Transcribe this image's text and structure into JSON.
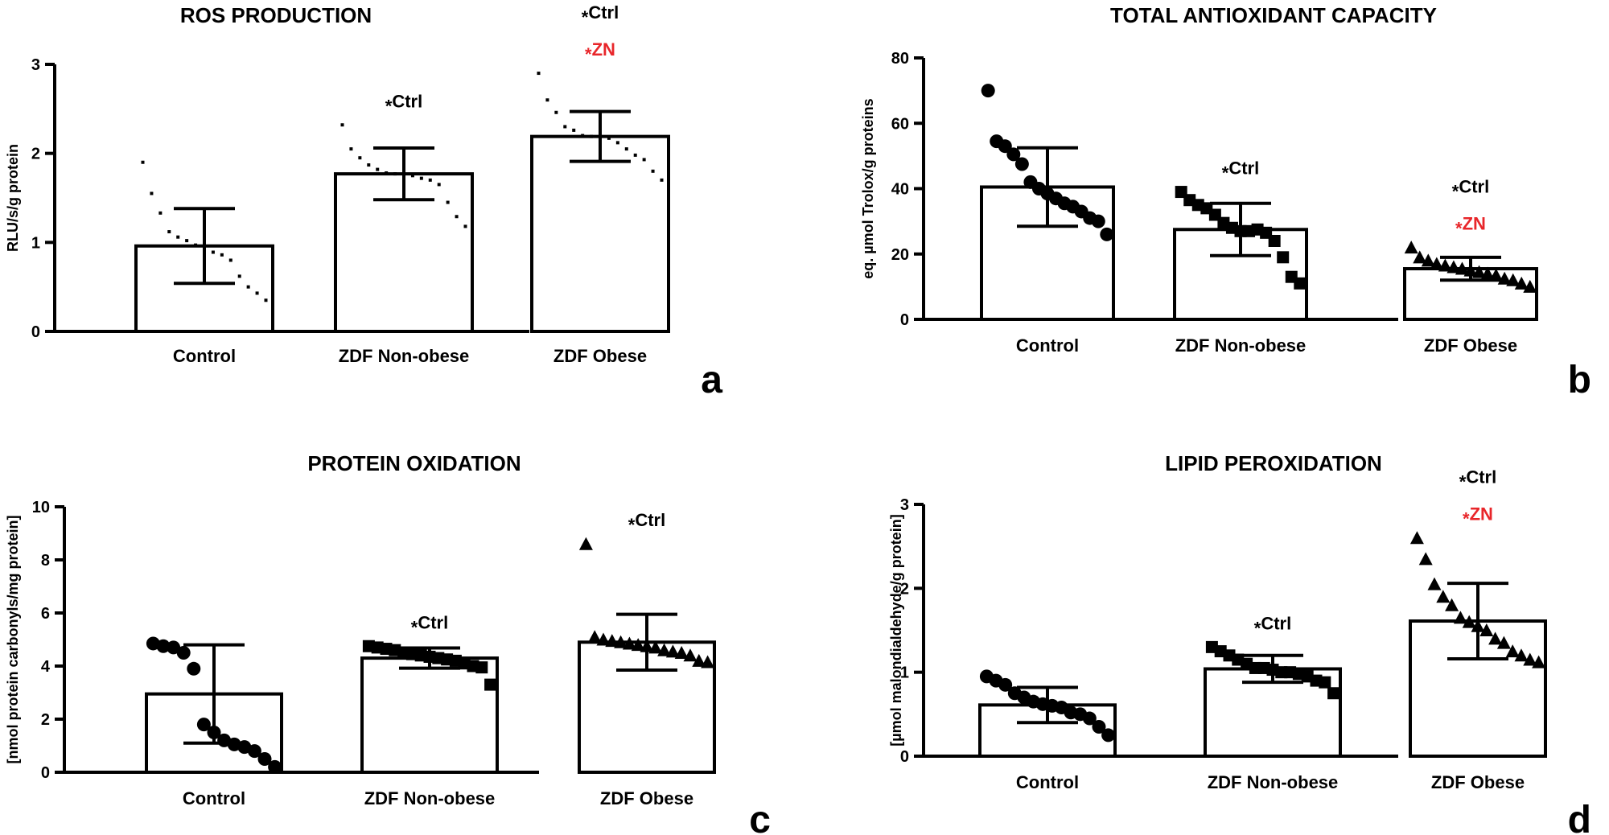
{
  "figure": {
    "colors": {
      "ink": "#000000",
      "highlight": "#e8262a"
    },
    "marker_key": {
      "tick-dot": "small square tick marks",
      "circle": "filled circle",
      "square": "filled square",
      "triangle": "filled triangle"
    }
  },
  "chart_data": [
    {
      "type": "bar",
      "panel": "a",
      "title": "ROS PRODUCTION",
      "ylabel": "RLU/s/g protein",
      "xlabel": "",
      "categories": [
        "Control",
        "ZDF Non-obese",
        "ZDF Obese"
      ],
      "ylim": [
        0,
        3
      ],
      "yticks": [
        0,
        1,
        2,
        3
      ],
      "means": [
        0.96,
        1.77,
        2.19
      ],
      "errors": [
        0.42,
        0.29,
        0.28
      ],
      "marker": "tick-dot",
      "points": [
        [
          1.9,
          1.55,
          1.33,
          1.12,
          1.06,
          1.02,
          0.97,
          0.93,
          0.89,
          0.86,
          0.8,
          0.62,
          0.5,
          0.43,
          0.35
        ],
        [
          2.32,
          2.05,
          1.95,
          1.87,
          1.82,
          1.78,
          1.77,
          1.76,
          1.75,
          1.72,
          1.7,
          1.65,
          1.45,
          1.29,
          1.18
        ],
        [
          2.9,
          2.6,
          2.46,
          2.3,
          2.26,
          2.2,
          2.19,
          2.18,
          2.17,
          2.12,
          2.05,
          1.98,
          1.93,
          1.8,
          1.7
        ]
      ],
      "annotations": [
        {
          "category": "ZDF Non-obese",
          "lines": [
            {
              "text": "Ctrl",
              "color": "#000000"
            }
          ]
        },
        {
          "category": "ZDF Obese",
          "lines": [
            {
              "text": "Ctrl",
              "color": "#000000"
            },
            {
              "text": "ZN",
              "color": "#e8262a"
            }
          ]
        }
      ]
    },
    {
      "type": "bar",
      "panel": "b",
      "title": "TOTAL ANTIOXIDANT CAPACITY",
      "ylabel": "eq. µmol Trolox/g proteins",
      "xlabel": "",
      "categories": [
        "Control",
        "ZDF Non-obese",
        "ZDF Obese"
      ],
      "ylim": [
        0,
        80
      ],
      "yticks": [
        0,
        20,
        40,
        60,
        80
      ],
      "means": [
        40.5,
        27.5,
        15.5
      ],
      "errors": [
        12,
        8,
        3.5
      ],
      "marker": "circle",
      "points": [
        [
          70,
          54.5,
          53,
          50.5,
          47.5,
          42,
          40,
          38.5,
          37,
          35.5,
          34.5,
          33,
          31,
          30,
          26
        ],
        [
          39,
          36.5,
          35,
          34,
          32,
          29.5,
          28,
          27,
          27,
          27.5,
          26.5,
          24,
          19,
          13,
          11
        ],
        [
          22,
          19,
          18,
          17,
          16.5,
          16,
          15.5,
          15,
          14.5,
          14,
          13.5,
          12.5,
          12,
          11,
          10
        ]
      ],
      "annotations": [
        {
          "category": "ZDF Non-obese",
          "lines": [
            {
              "text": "Ctrl",
              "color": "#000000"
            }
          ]
        },
        {
          "category": "ZDF Obese",
          "lines": [
            {
              "text": "Ctrl",
              "color": "#000000"
            },
            {
              "text": "ZN",
              "color": "#e8262a"
            }
          ]
        }
      ]
    },
    {
      "type": "bar",
      "panel": "c",
      "title": "PROTEIN OXIDATION",
      "ylabel": "[nmol protein carbonyls/mg protein]",
      "xlabel": "",
      "categories": [
        "Control",
        "ZDF Non-obese",
        "ZDF Obese"
      ],
      "ylim": [
        0,
        10
      ],
      "yticks": [
        0,
        2,
        4,
        6,
        8,
        10
      ],
      "means": [
        2.95,
        4.3,
        4.9
      ],
      "errors": [
        1.85,
        0.38,
        1.05
      ],
      "marker": "circle",
      "points": [
        [
          4.85,
          4.75,
          4.7,
          4.5,
          3.9,
          1.8,
          1.5,
          1.2,
          1.05,
          0.95,
          0.8,
          0.5,
          0.2
        ],
        [
          4.75,
          4.7,
          4.65,
          4.6,
          4.5,
          4.45,
          4.4,
          4.35,
          4.3,
          4.25,
          4.2,
          4.1,
          4.0,
          3.95,
          3.3
        ],
        [
          8.6,
          5.1,
          5.0,
          4.95,
          4.9,
          4.85,
          4.8,
          4.75,
          4.7,
          4.6,
          4.55,
          4.5,
          4.4,
          4.2,
          4.15
        ]
      ],
      "annotations": [
        {
          "category": "ZDF Non-obese",
          "lines": [
            {
              "text": "Ctrl",
              "color": "#000000"
            }
          ]
        },
        {
          "category": "ZDF Obese",
          "lines": [
            {
              "text": "Ctrl",
              "color": "#000000"
            }
          ]
        }
      ]
    },
    {
      "type": "bar",
      "panel": "d",
      "title": "LIPID PEROXIDATION",
      "ylabel": "[µmol malondialdehyde/g protein]",
      "xlabel": "",
      "categories": [
        "Control",
        "ZDF Non-obese",
        "ZDF Obese"
      ],
      "ylim": [
        0,
        3
      ],
      "yticks": [
        0,
        1,
        2,
        3
      ],
      "means": [
        0.61,
        1.04,
        1.61
      ],
      "errors": [
        0.21,
        0.16,
        0.45
      ],
      "marker": "circle",
      "points": [
        [
          0.95,
          0.9,
          0.85,
          0.75,
          0.7,
          0.65,
          0.62,
          0.6,
          0.58,
          0.52,
          0.5,
          0.45,
          0.35,
          0.25
        ],
        [
          1.3,
          1.25,
          1.2,
          1.15,
          1.1,
          1.05,
          1.05,
          1.03,
          1.0,
          1.0,
          0.98,
          0.95,
          0.9,
          0.88,
          0.75
        ],
        [
          2.6,
          2.35,
          2.05,
          1.9,
          1.8,
          1.65,
          1.6,
          1.55,
          1.5,
          1.4,
          1.35,
          1.25,
          1.2,
          1.15,
          1.12
        ]
      ],
      "annotations": [
        {
          "category": "ZDF Non-obese",
          "lines": [
            {
              "text": "Ctrl",
              "color": "#000000"
            }
          ]
        },
        {
          "category": "ZDF Obese",
          "lines": [
            {
              "text": "Ctrl",
              "color": "#000000"
            },
            {
              "text": "ZN",
              "color": "#e8262a"
            }
          ]
        }
      ]
    }
  ]
}
